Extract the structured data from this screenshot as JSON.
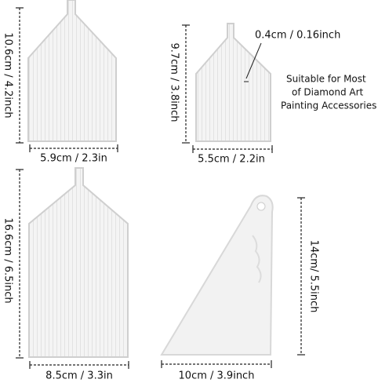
{
  "trays": [
    {
      "height_label": "10.6cm / 4.2inch",
      "width_label": "5.9cm / 2.3in"
    },
    {
      "height_label": "9.7cm / 3.8inch",
      "width_label": "5.5cm / 2.2in",
      "callout": "0.4cm / 0.16inch"
    },
    {
      "height_label": "16.6cm / 6.5inch",
      "width_label": "8.5cm / 3.3in"
    }
  ],
  "scraper": {
    "height_label": "14cm/ 5.5inch",
    "width_label": "10cm / 3.9inch"
  },
  "note": {
    "lines": [
      "Suitable for Most",
      "of Diamond Art",
      "Painting Accessories"
    ]
  }
}
